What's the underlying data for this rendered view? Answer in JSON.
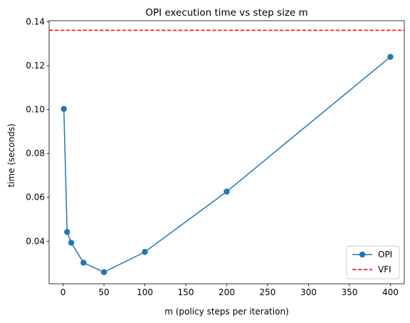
{
  "chart_data": {
    "type": "line",
    "title": "OPI execution time vs step size m",
    "xlabel": "m (policy steps per iteration)",
    "ylabel": "time (seconds)",
    "xlim": [
      -17,
      417
    ],
    "ylim": [
      0.0206,
      0.1405
    ],
    "xticks": [
      0,
      50,
      100,
      150,
      200,
      250,
      300,
      350,
      400
    ],
    "yticks": [
      0.04,
      0.06,
      0.08,
      0.1,
      0.12,
      0.14
    ],
    "ytick_labels": [
      "0.04",
      "0.06",
      "0.08",
      "0.10",
      "0.12",
      "0.14"
    ],
    "series": [
      {
        "name": "OPI",
        "style": "line-marker",
        "color": "#1f77b4",
        "x": [
          1,
          5,
          10,
          25,
          50,
          100,
          200,
          400
        ],
        "y": [
          0.1003,
          0.0442,
          0.0393,
          0.0302,
          0.0259,
          0.0351,
          0.0626,
          0.124
        ]
      },
      {
        "name": "VFI",
        "style": "hline-dashed",
        "color": "#ff0000",
        "y": 0.1361
      }
    ],
    "legend": {
      "placement": "bottom-right",
      "entries": [
        "OPI",
        "VFI"
      ]
    },
    "grid": false
  }
}
